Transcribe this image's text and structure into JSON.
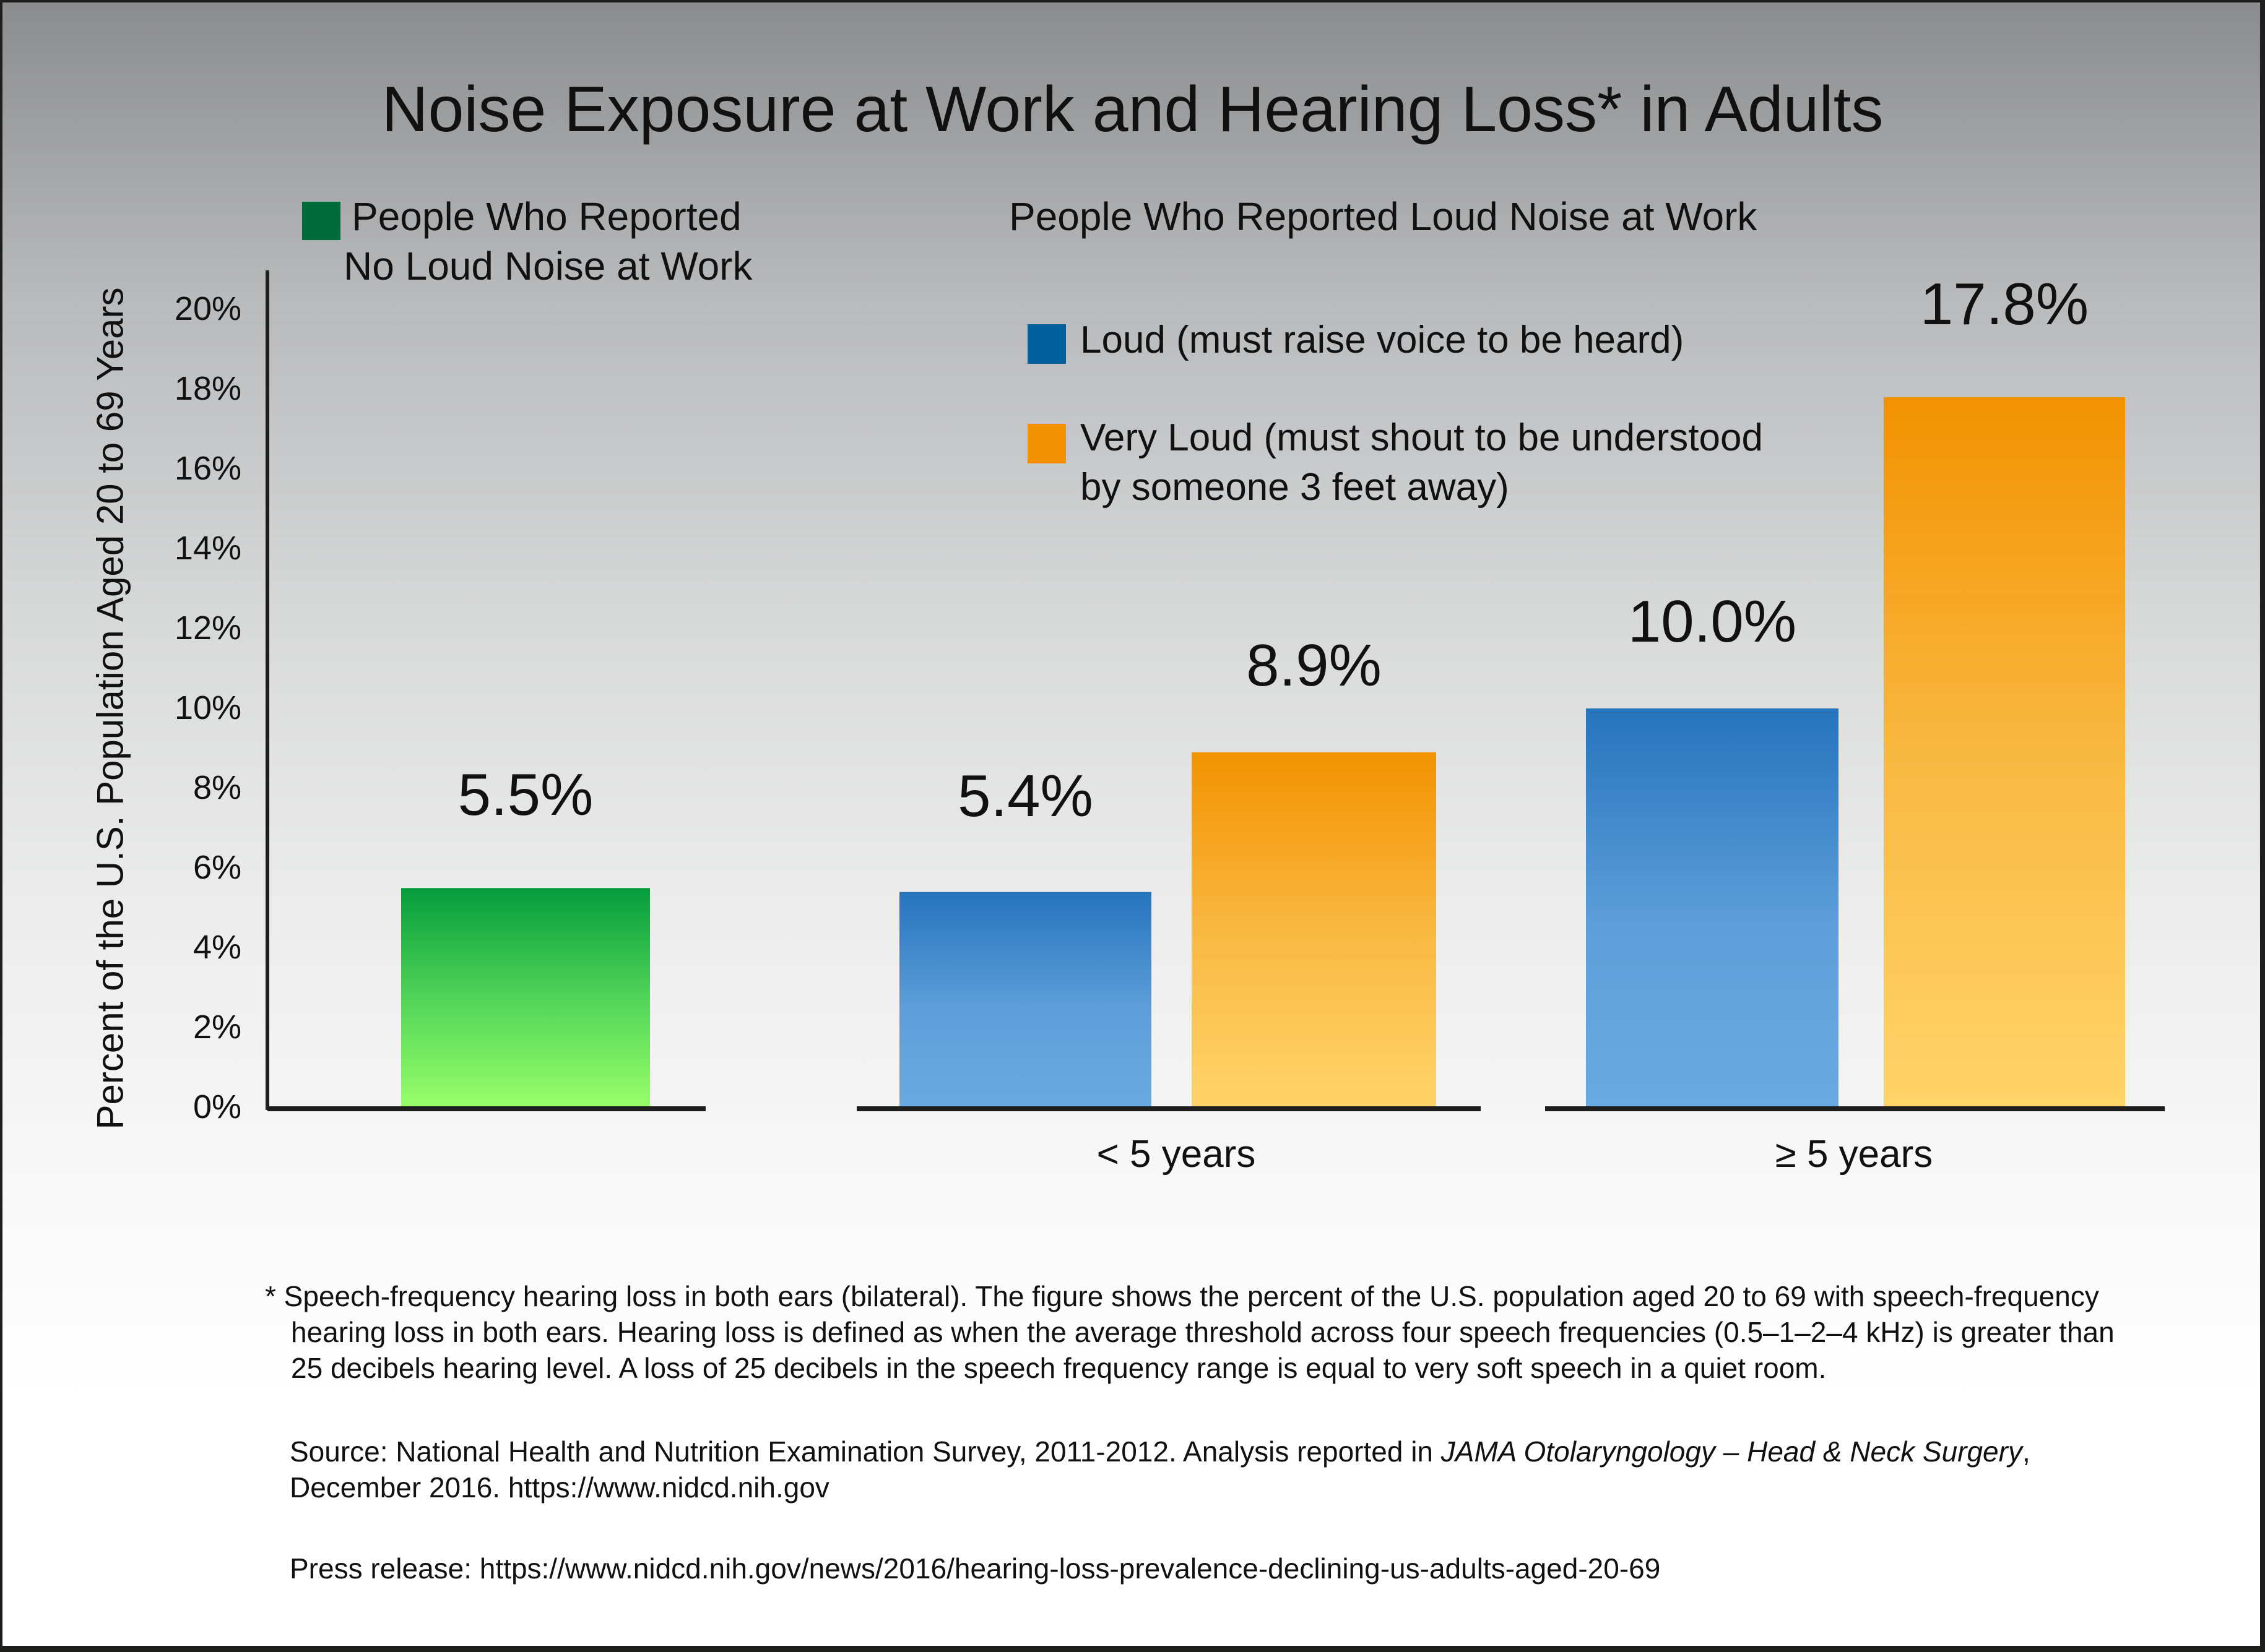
{
  "title": "Noise Exposure at Work and Hearing Loss* in Adults",
  "group_headers": {
    "no_noise_line1": "People Who Reported",
    "no_noise_line2": "No Loud Noise at Work",
    "loud_noise": "People Who Reported Loud Noise at Work"
  },
  "colors": {
    "no_noise": "#006b3a",
    "loud": "#00609c",
    "very_loud": "#f39200",
    "axis": "#1e1e1c"
  },
  "chart_data": {
    "type": "bar",
    "title": "Noise Exposure at Work and Hearing Loss* in Adults",
    "ylabel": "Percent of the U.S. Population Aged 20 to 69 Years",
    "xlabel": "",
    "ylim": [
      0,
      20
    ],
    "yticks": [
      "0%",
      "2%",
      "4%",
      "6%",
      "8%",
      "10%",
      "12%",
      "14%",
      "16%",
      "18%",
      "20%"
    ],
    "ytick_values": [
      0,
      2,
      4,
      6,
      8,
      10,
      12,
      14,
      16,
      18,
      20
    ],
    "grid": false,
    "groups": [
      {
        "name": "No Loud Noise at Work",
        "xlabel": "",
        "bars": [
          {
            "series": "People Who Reported No Loud Noise at Work",
            "value": 5.5,
            "label": "5.5%"
          }
        ]
      },
      {
        "name": "< 5 years",
        "xlabel": "< 5 years",
        "bars": [
          {
            "series": "Loud (must raise voice to be heard)",
            "value": 5.4,
            "label": "5.4%"
          },
          {
            "series": "Very Loud (must shout to be understood by someone 3 feet away)",
            "value": 8.9,
            "label": "8.9%"
          }
        ]
      },
      {
        "name": "≥ 5 years",
        "xlabel": "≥ 5 years",
        "bars": [
          {
            "series": "Loud (must raise voice to be heard)",
            "value": 10.0,
            "label": "10.0%"
          },
          {
            "series": "Very Loud (must shout to be understood by someone 3 feet away)",
            "value": 17.8,
            "label": "17.8%"
          }
        ]
      }
    ],
    "legend": [
      {
        "name": "People Who Reported No Loud Noise at Work",
        "color": "#006b3a"
      },
      {
        "name": "Loud (must raise voice to be heard)",
        "color": "#00609c"
      },
      {
        "name": "Very Loud (must shout to be understood by someone 3 feet away)",
        "color": "#f39200"
      }
    ],
    "legend_placement": "top"
  },
  "legend": {
    "loud": "Loud (must raise voice to be heard)",
    "very_loud_line1": "Very Loud (must shout to be understood",
    "very_loud_line2": "by someone 3 feet away)"
  },
  "footnotes": {
    "definition_line1": "* Speech-frequency hearing loss in both ears (bilateral). The figure shows the percent of the U.S. population aged 20 to 69 with speech-frequency",
    "definition_line2": "hearing loss in both ears. Hearing loss is defined as when the average threshold across four speech frequencies (0.5–1–2–4 kHz) is greater than",
    "definition_line3": "25 decibels hearing level. A loss of 25 decibels in the speech frequency range is equal to very soft speech in a quiet room.",
    "source_prefix": "Source: National Health and Nutrition Examination Survey, 2011-2012. Analysis reported in ",
    "source_journal": "JAMA Otolaryngology – Head & Neck Surgery",
    "source_suffix": ",",
    "source_line2": "December 2016. https://www.nidcd.nih.gov",
    "press_release": "Press release: https://www.nidcd.nih.gov/news/2016/hearing-loss-prevalence-declining-us-adults-aged-20-69"
  }
}
